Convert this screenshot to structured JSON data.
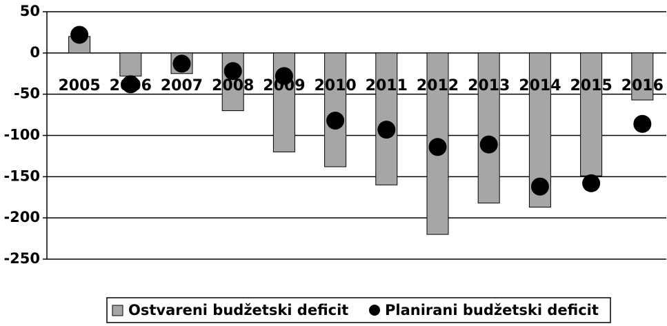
{
  "chart_data": {
    "type": "bar",
    "categories": [
      "2005",
      "2006",
      "2007",
      "2008",
      "2009",
      "2010",
      "2011",
      "2012",
      "2013",
      "2014",
      "2015",
      "2016"
    ],
    "series": [
      {
        "name": "Ostvareni budžetski deficit",
        "type": "bar",
        "color": "#a6a6a6",
        "values": [
          20,
          -28,
          -25,
          -70,
          -120,
          -138,
          -160,
          -220,
          -182,
          -187,
          -149,
          -57
        ]
      },
      {
        "name": "Planirani budžetski deficit",
        "type": "scatter",
        "color": "#000000",
        "values": [
          22,
          -38,
          -13,
          -22,
          -28,
          -82,
          -93,
          -114,
          -111,
          -162,
          -158,
          -86
        ]
      }
    ],
    "ylim": [
      -250,
      50
    ],
    "yticks": [
      50,
      0,
      -50,
      -100,
      -150,
      -200,
      -250
    ],
    "grid": true,
    "legend": "bottom"
  }
}
